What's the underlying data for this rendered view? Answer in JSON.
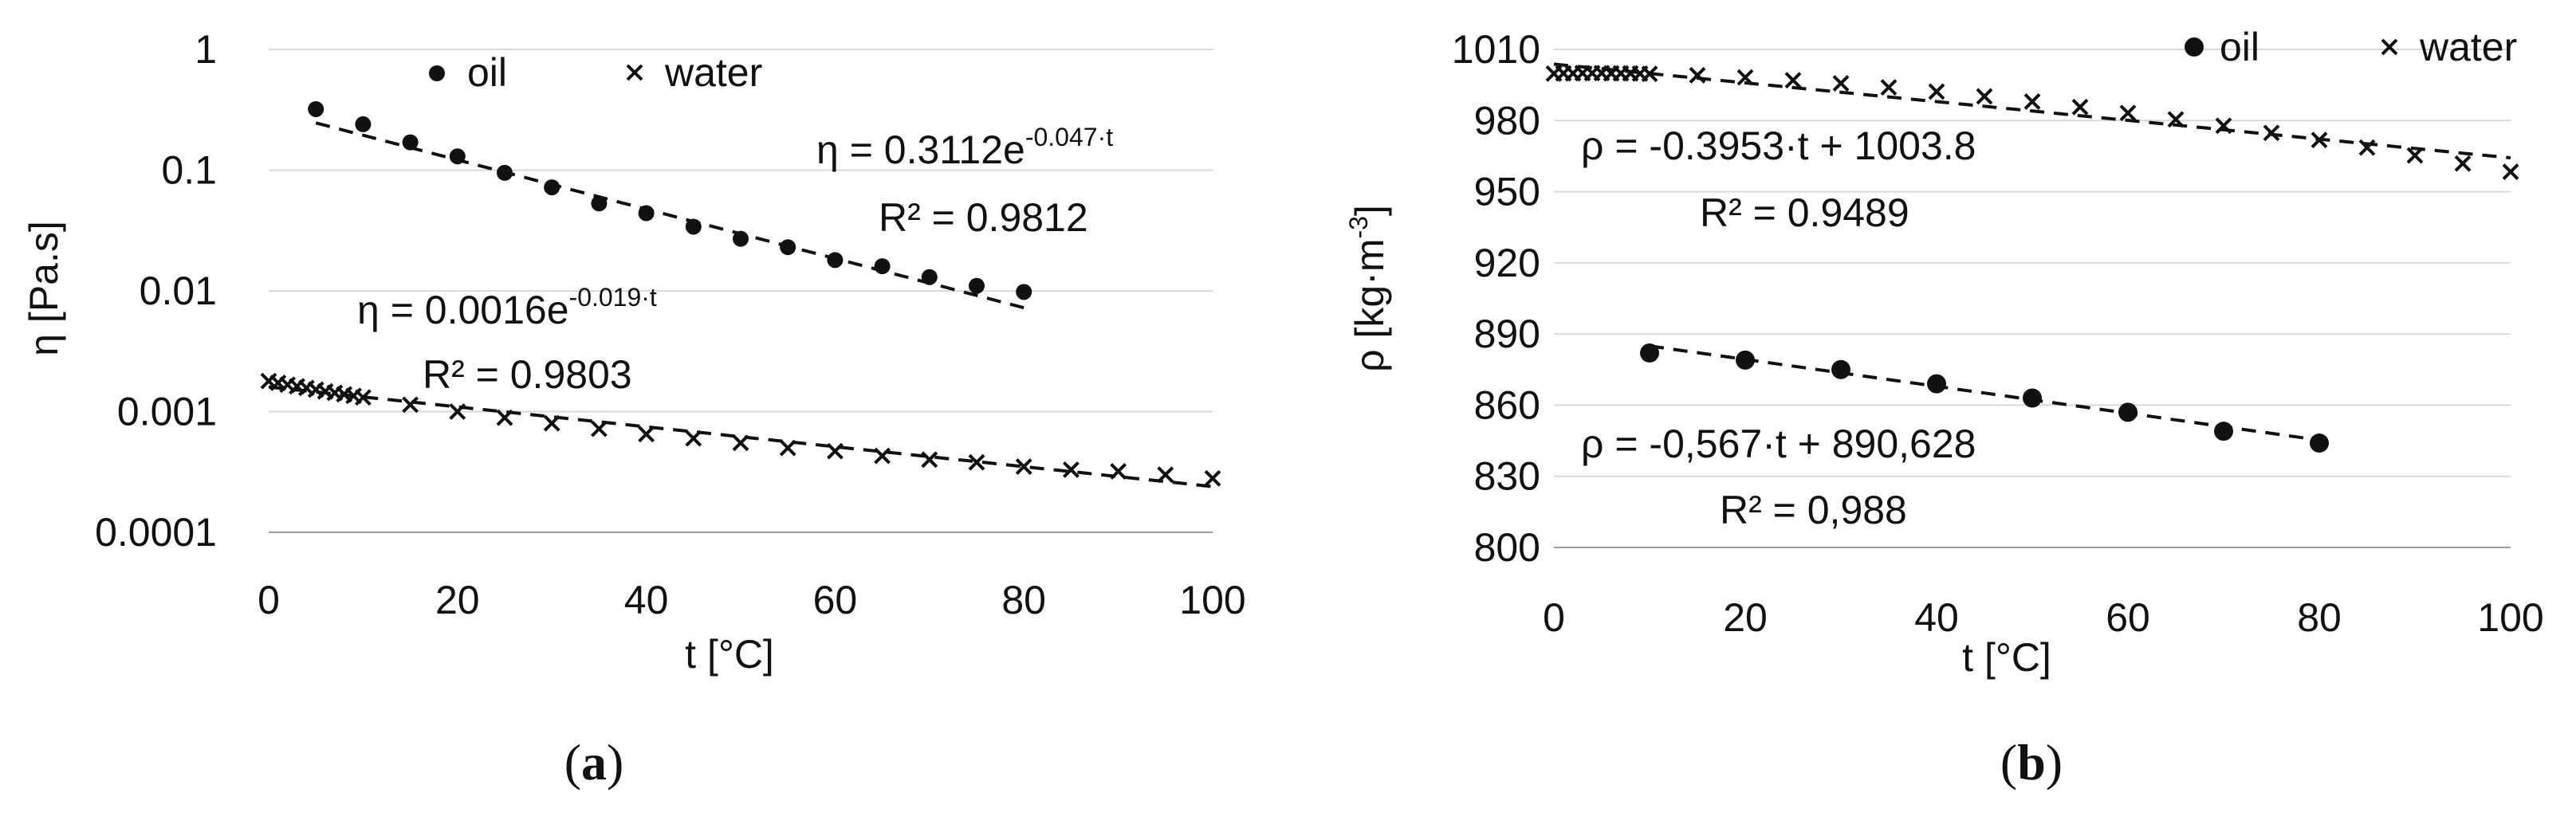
{
  "chart_data": [
    {
      "id": "a",
      "type": "scatter",
      "sublabel": "a",
      "xlabel": "t [°C]",
      "ylabel": "η [Pa.s]",
      "yscale": "log",
      "xlim": [
        0,
        100
      ],
      "ylim": [
        0.0001,
        1
      ],
      "xticks": [
        "0",
        "20",
        "40",
        "60",
        "80",
        "100"
      ],
      "yticks": [
        "0.0001",
        "0.001",
        "0.01",
        "0.1",
        "1"
      ],
      "grid": "horizontal",
      "legend": "top-left",
      "series": [
        {
          "name": "oil",
          "marker": "dot",
          "x": [
            5,
            10,
            15,
            20,
            25,
            30,
            35,
            40,
            45,
            50,
            55,
            60,
            65,
            70,
            75,
            80
          ],
          "y": [
            0.32,
            0.24,
            0.17,
            0.13,
            0.095,
            0.072,
            0.053,
            0.044,
            0.034,
            0.027,
            0.023,
            0.018,
            0.016,
            0.013,
            0.011,
            0.0098
          ]
        },
        {
          "name": "water",
          "marker": "cross",
          "x": [
            0,
            1,
            2,
            3,
            4,
            5,
            6,
            7,
            8,
            9,
            10,
            15,
            20,
            25,
            30,
            35,
            40,
            45,
            50,
            55,
            60,
            65,
            70,
            75,
            80,
            85,
            90,
            95,
            100
          ],
          "y": [
            0.00179,
            0.00173,
            0.00167,
            0.00162,
            0.00157,
            0.00152,
            0.00147,
            0.00143,
            0.00139,
            0.00135,
            0.00131,
            0.00114,
            0.001,
            0.00089,
            0.0008,
            0.00072,
            0.00065,
            0.0006,
            0.00055,
            0.0005,
            0.00047,
            0.00043,
            0.0004,
            0.00038,
            0.00035,
            0.00033,
            0.00032,
            0.0003,
            0.00028
          ]
        }
      ],
      "trendlines": [
        {
          "series": "oil",
          "form": "exp",
          "a": 0.3112,
          "b": -0.047,
          "xrange": [
            5,
            80
          ]
        },
        {
          "series": "water",
          "form": "exp",
          "a": 0.0016,
          "b": -0.019,
          "xrange": [
            0,
            100
          ]
        }
      ],
      "annotations": [
        {
          "main": "η = 0.3112e",
          "sup": "-0.047·t",
          "r2": "R² = 0.9812"
        },
        {
          "main": "η = 0.0016e",
          "sup": "-0.019·t",
          "r2": "R² = 0.9803"
        }
      ]
    },
    {
      "id": "b",
      "type": "scatter",
      "sublabel": "b",
      "xlabel": "t [°C]",
      "ylabel_main": "ρ  [kg·m",
      "ylabel_sup": "-3",
      "ylabel_end": "]",
      "xlim": [
        0,
        100
      ],
      "ylim": [
        800,
        1010
      ],
      "xticks": [
        "0",
        "20",
        "40",
        "60",
        "80",
        "100"
      ],
      "yticks": [
        "800",
        "830",
        "860",
        "890",
        "920",
        "950",
        "980",
        "1010"
      ],
      "grid": "horizontal",
      "legend": "top-right",
      "series": [
        {
          "name": "oil",
          "marker": "dot",
          "x": [
            10,
            20,
            30,
            40,
            50,
            60,
            70,
            80
          ],
          "y": [
            882,
            879,
            875,
            869,
            863,
            857,
            849,
            844
          ]
        },
        {
          "name": "water",
          "marker": "cross",
          "x": [
            0,
            1,
            2,
            3,
            4,
            5,
            6,
            7,
            8,
            9,
            10,
            15,
            20,
            25,
            30,
            35,
            40,
            45,
            50,
            55,
            60,
            65,
            70,
            75,
            80,
            85,
            90,
            95,
            100
          ],
          "y": [
            999.8,
            999.9,
            999.9,
            1000,
            1000,
            1000,
            999.9,
            999.9,
            999.9,
            999.8,
            999.7,
            999.1,
            998.2,
            997,
            995.7,
            994,
            992.2,
            990.2,
            988,
            985.7,
            983.2,
            980.5,
            977.8,
            974.8,
            971.8,
            968.6,
            965.3,
            961.9,
            958.4
          ]
        }
      ],
      "trendlines": [
        {
          "series": "water",
          "form": "linear",
          "m": -0.3953,
          "c": 1003.8,
          "xrange": [
            0,
            100
          ]
        },
        {
          "series": "oil",
          "form": "linear",
          "m": -0.567,
          "c": 890.628,
          "xrange": [
            10,
            80
          ]
        }
      ],
      "annotations": [
        {
          "main": "ρ = -0.3953·t + 1003.8",
          "r2": "R² = 0.9489"
        },
        {
          "main": "ρ = -0,567·t + 890,628",
          "r2": "R² = 0,988"
        }
      ]
    }
  ]
}
